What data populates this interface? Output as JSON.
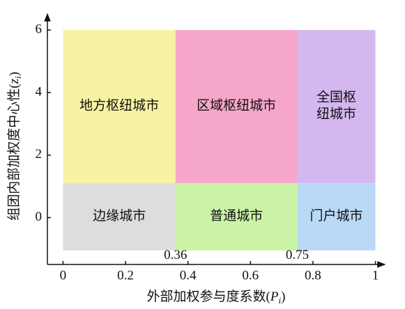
{
  "chart_data": {
    "type": "region",
    "xlabel": {
      "prefix": "外部加权参与度系数(",
      "symbol": "P",
      "subscript": "i",
      "suffix": ")"
    },
    "ylabel": {
      "prefix": "组团内部加权度中心性(",
      "symbol": "z",
      "subscript": "i",
      "suffix": ")"
    },
    "xlim": [
      -0.05,
      1.03
    ],
    "ylim": [
      -1.5,
      6.45
    ],
    "xticks": [
      0,
      0.2,
      0.4,
      0.6,
      0.8,
      1
    ],
    "yticks": [
      0,
      2,
      4,
      6
    ],
    "boundaries": [
      0.36,
      0.75
    ],
    "regions": [
      {
        "lines": [
          "地方枢纽城市"
        ],
        "x": [
          0,
          0.36
        ],
        "y": [
          1.1,
          6
        ],
        "color": "#f6f3a3"
      },
      {
        "lines": [
          "区域枢纽城市"
        ],
        "x": [
          0.36,
          0.75
        ],
        "y": [
          1.1,
          6
        ],
        "color": "#f5a6c9"
      },
      {
        "lines": [
          "全国枢",
          "纽城市"
        ],
        "x": [
          0.75,
          1
        ],
        "y": [
          1.1,
          6
        ],
        "color": "#d4b7ef"
      },
      {
        "lines": [
          "边缘城市"
        ],
        "x": [
          0,
          0.36
        ],
        "y": [
          -1.05,
          1.1
        ],
        "color": "#dcdedd"
      },
      {
        "lines": [
          "普通城市"
        ],
        "x": [
          0.36,
          0.75
        ],
        "y": [
          -1.05,
          1.1
        ],
        "color": "#caf3a6"
      },
      {
        "lines": [
          "门户城市"
        ],
        "x": [
          0.75,
          1
        ],
        "y": [
          -1.05,
          1.1
        ],
        "color": "#b9d9f6"
      }
    ]
  }
}
